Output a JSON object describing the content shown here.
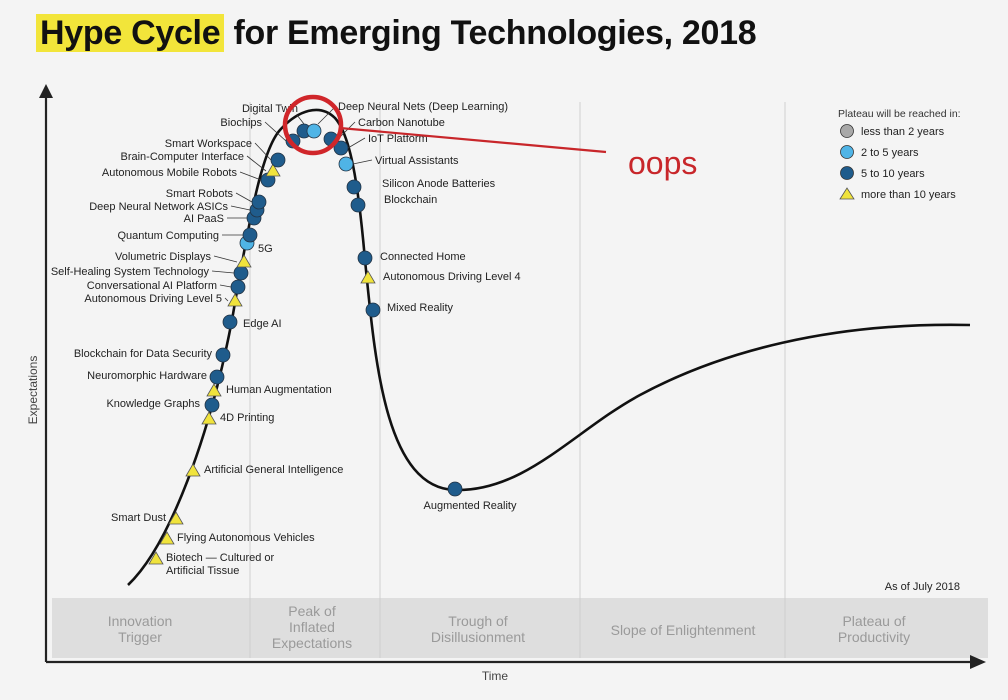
{
  "title": {
    "highlight": "Hype Cycle",
    "rest": "for Emerging Technologies, 2018"
  },
  "axes": {
    "y": "Expectations",
    "x": "Time"
  },
  "as_of": "As of July 2018",
  "phases": [
    {
      "lines": [
        "Innovation",
        "Trigger"
      ]
    },
    {
      "lines": [
        "Peak of",
        "Inflated",
        "Expectations"
      ]
    },
    {
      "lines": [
        "Trough of",
        "Disillusionment"
      ]
    },
    {
      "lines": [
        "Slope of Enlightenment"
      ]
    },
    {
      "lines": [
        "Plateau of",
        "Productivity"
      ]
    }
  ],
  "legend": {
    "title": "Plateau will be reached in:",
    "items": [
      {
        "label": "less than 2 years",
        "symbol": "circle",
        "color": "#a8a8a8"
      },
      {
        "label": "2 to 5 years",
        "symbol": "circle",
        "color": "#4fb4e6"
      },
      {
        "label": "5 to 10 years",
        "symbol": "circle",
        "color": "#1f5c8c"
      },
      {
        "label": "more than 10 years",
        "symbol": "triangle",
        "color": "#f0e33c"
      }
    ]
  },
  "annotation": {
    "text": "oops",
    "color": "#c8262a"
  },
  "technologies": [
    {
      "name": "Biotech — Cultured or Artificial Tissue",
      "category": "more than 10 years"
    },
    {
      "name": "Flying Autonomous Vehicles",
      "category": "more than 10 years"
    },
    {
      "name": "Smart Dust",
      "category": "more than 10 years"
    },
    {
      "name": "Artificial General Intelligence",
      "category": "more than 10 years"
    },
    {
      "name": "4D Printing",
      "category": "more than 10 years"
    },
    {
      "name": "Knowledge Graphs",
      "category": "5 to 10 years"
    },
    {
      "name": "Human Augmentation",
      "category": "more than 10 years"
    },
    {
      "name": "Neuromorphic Hardware",
      "category": "5 to 10 years"
    },
    {
      "name": "Blockchain for Data Security",
      "category": "5 to 10 years"
    },
    {
      "name": "Edge AI",
      "category": "5 to 10 years"
    },
    {
      "name": "Autonomous Driving Level 5",
      "category": "more than 10 years"
    },
    {
      "name": "Conversational AI Platform",
      "category": "5 to 10 years"
    },
    {
      "name": "Self-Healing System Technology",
      "category": "5 to 10 years"
    },
    {
      "name": "Volumetric Displays",
      "category": "more than 10 years"
    },
    {
      "name": "5G",
      "category": "2 to 5 years"
    },
    {
      "name": "Quantum Computing",
      "category": "5 to 10 years"
    },
    {
      "name": "AI PaaS",
      "category": "5 to 10 years"
    },
    {
      "name": "Deep Neural Network ASICs",
      "category": "5 to 10 years"
    },
    {
      "name": "Smart Robots",
      "category": "5 to 10 years"
    },
    {
      "name": "Autonomous Mobile Robots",
      "category": "5 to 10 years"
    },
    {
      "name": "Brain-Computer Interface",
      "category": "more than 10 years"
    },
    {
      "name": "Smart Workspace",
      "category": "5 to 10 years"
    },
    {
      "name": "Biochips",
      "category": "5 to 10 years"
    },
    {
      "name": "Digital Twin",
      "category": "5 to 10 years"
    },
    {
      "name": "Deep Neural Nets (Deep Learning)",
      "category": "2 to 5 years"
    },
    {
      "name": "Carbon Nanotube",
      "category": "5 to 10 years"
    },
    {
      "name": "IoT Platform",
      "category": "5 to 10 years"
    },
    {
      "name": "Virtual Assistants",
      "category": "2 to 5 years"
    },
    {
      "name": "Silicon Anode Batteries",
      "category": "5 to 10 years"
    },
    {
      "name": "Blockchain",
      "category": "5 to 10 years"
    },
    {
      "name": "Connected Home",
      "category": "5 to 10 years"
    },
    {
      "name": "Autonomous Driving Level 4",
      "category": "more than 10 years"
    },
    {
      "name": "Mixed Reality",
      "category": "5 to 10 years"
    },
    {
      "name": "Augmented Reality",
      "category": "5 to 10 years"
    }
  ]
}
